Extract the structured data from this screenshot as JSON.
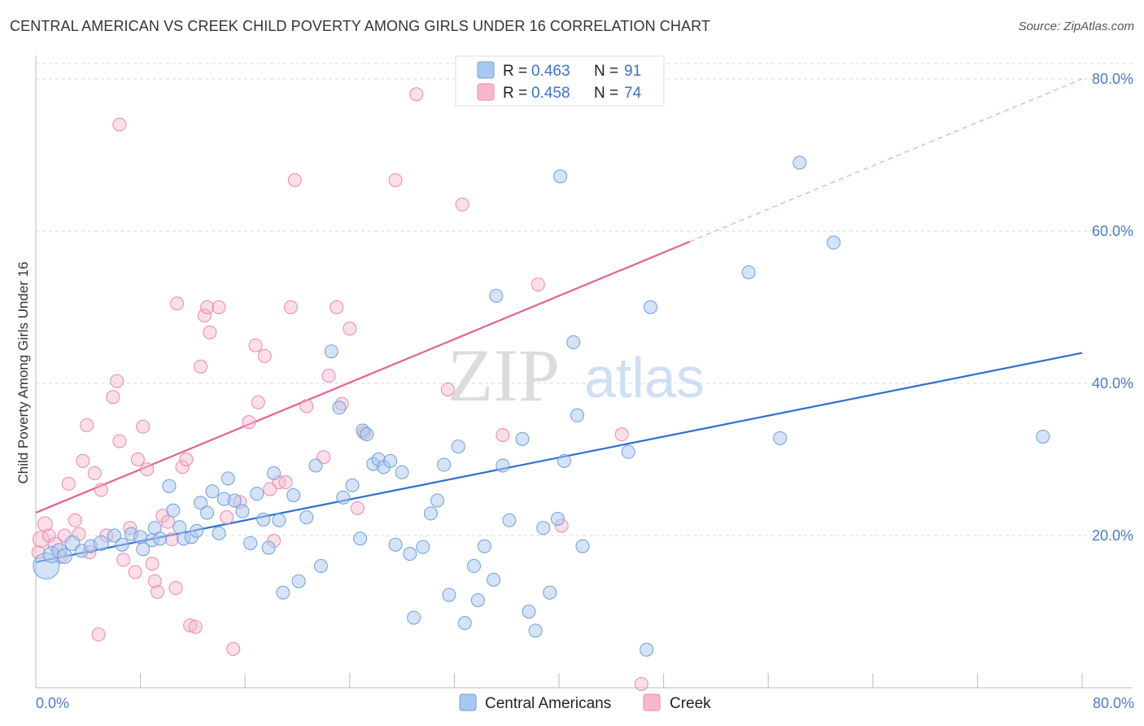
{
  "header": {
    "title": "CENTRAL AMERICAN VS CREEK CHILD POVERTY AMONG GIRLS UNDER 16 CORRELATION CHART",
    "source": "Source: ZipAtlas.com"
  },
  "watermark": {
    "zip": "ZIP",
    "atlas": "atlas"
  },
  "legend": {
    "rows": [
      {
        "r_label": "R = ",
        "r_value": "0.463",
        "n_label": "N = ",
        "n_value": "91",
        "color": "#a9c8f0"
      },
      {
        "r_label": "R = ",
        "r_value": "0.458",
        "n_label": "N = ",
        "n_value": "74",
        "color": "#f7b8cb"
      }
    ]
  },
  "bottom_legend": {
    "items": [
      {
        "label": "Central Americans",
        "color": "#a9c8f0"
      },
      {
        "label": "Creek",
        "color": "#f7b8cb"
      }
    ]
  },
  "chart_data": {
    "type": "scatter",
    "title": "CENTRAL AMERICAN VS CREEK CHILD POVERTY AMONG GIRLS UNDER 16 CORRELATION CHART",
    "xlabel": "",
    "ylabel": "Child Poverty Among Girls Under 16",
    "xlim": [
      0,
      80
    ],
    "ylim": [
      0,
      80
    ],
    "x_tick_labels": [
      "0.0%",
      "80.0%"
    ],
    "y_tick_labels": [
      "20.0%",
      "40.0%",
      "60.0%",
      "80.0%"
    ],
    "y_ticks": [
      20,
      40,
      60,
      80
    ],
    "grid": "horizontal dashed",
    "legend_position": "top-center",
    "colors": {
      "blue": "#6f9fdc",
      "blue_fill": "#a9c8f0",
      "pink": "#ee87a7",
      "pink_fill": "#f7b8cb",
      "blue_line": "#2f6fd0",
      "pink_line": "#e4628e"
    },
    "series": [
      {
        "name": "Central Americans",
        "r": 0.463,
        "n": 91,
        "trend": {
          "x": [
            0,
            80
          ],
          "y": [
            16.5,
            44.0
          ],
          "dashed_from": null
        },
        "points": [
          [
            0.8,
            16.0,
            16
          ],
          [
            1.2,
            17.5,
            10
          ],
          [
            1.8,
            18.0,
            9
          ],
          [
            2.2,
            17.3,
            9
          ],
          [
            2.8,
            19.0,
            9
          ],
          [
            3.5,
            18.0,
            8
          ],
          [
            4.2,
            18.6,
            8
          ],
          [
            5.0,
            19.0,
            9
          ],
          [
            6.0,
            20.0,
            8
          ],
          [
            6.6,
            18.8,
            8
          ],
          [
            7.3,
            20.2,
            8
          ],
          [
            8.0,
            19.8,
            8
          ],
          [
            8.2,
            18.2,
            8
          ],
          [
            8.9,
            19.4,
            8
          ],
          [
            9.1,
            21.0,
            8
          ],
          [
            9.5,
            19.6,
            8
          ],
          [
            10.2,
            26.5,
            8
          ],
          [
            10.5,
            23.3,
            8
          ],
          [
            11.0,
            21.1,
            8
          ],
          [
            11.3,
            19.6,
            8
          ],
          [
            11.9,
            19.8,
            8
          ],
          [
            12.3,
            20.6,
            8
          ],
          [
            12.6,
            24.3,
            8
          ],
          [
            13.1,
            23.0,
            8
          ],
          [
            13.5,
            25.8,
            8
          ],
          [
            14.0,
            20.3,
            8
          ],
          [
            14.4,
            24.8,
            8
          ],
          [
            14.7,
            27.5,
            8
          ],
          [
            15.2,
            24.6,
            8
          ],
          [
            15.8,
            23.2,
            8
          ],
          [
            16.4,
            19.0,
            8
          ],
          [
            16.9,
            25.5,
            8
          ],
          [
            17.4,
            22.1,
            8
          ],
          [
            17.8,
            18.4,
            8
          ],
          [
            18.2,
            28.2,
            8
          ],
          [
            18.6,
            22.0,
            8
          ],
          [
            18.9,
            12.5,
            8
          ],
          [
            19.7,
            25.3,
            8
          ],
          [
            20.1,
            14.0,
            8
          ],
          [
            20.7,
            22.4,
            8
          ],
          [
            21.4,
            29.2,
            8
          ],
          [
            21.8,
            16.0,
            8
          ],
          [
            22.6,
            44.2,
            8
          ],
          [
            23.2,
            36.8,
            8
          ],
          [
            23.5,
            25.0,
            8
          ],
          [
            24.2,
            26.6,
            8
          ],
          [
            24.8,
            19.6,
            8
          ],
          [
            25.0,
            33.8,
            8
          ],
          [
            25.3,
            33.3,
            8
          ],
          [
            25.8,
            29.4,
            8
          ],
          [
            26.2,
            30.0,
            8
          ],
          [
            26.6,
            29.0,
            8
          ],
          [
            27.1,
            29.8,
            8
          ],
          [
            27.5,
            18.8,
            8
          ],
          [
            28.0,
            28.3,
            8
          ],
          [
            28.6,
            17.6,
            8
          ],
          [
            28.9,
            9.2,
            8
          ],
          [
            29.6,
            18.5,
            8
          ],
          [
            30.2,
            22.9,
            8
          ],
          [
            30.7,
            24.6,
            8
          ],
          [
            31.2,
            29.3,
            8
          ],
          [
            31.6,
            12.2,
            8
          ],
          [
            32.3,
            31.7,
            8
          ],
          [
            32.8,
            8.5,
            8
          ],
          [
            33.5,
            16.0,
            8
          ],
          [
            33.8,
            11.5,
            8
          ],
          [
            34.3,
            18.6,
            8
          ],
          [
            35.0,
            14.2,
            8
          ],
          [
            35.2,
            51.5,
            8
          ],
          [
            35.7,
            29.2,
            8
          ],
          [
            36.2,
            22.0,
            8
          ],
          [
            37.2,
            32.7,
            8
          ],
          [
            37.7,
            10.0,
            8
          ],
          [
            38.2,
            7.5,
            8
          ],
          [
            38.8,
            21.0,
            8
          ],
          [
            39.3,
            12.5,
            8
          ],
          [
            39.9,
            22.2,
            8
          ],
          [
            40.1,
            67.2,
            8
          ],
          [
            40.4,
            29.8,
            8
          ],
          [
            41.1,
            45.4,
            8
          ],
          [
            41.4,
            35.8,
            8
          ],
          [
            41.8,
            18.6,
            8
          ],
          [
            45.3,
            31.0,
            8
          ],
          [
            46.7,
            5.0,
            8
          ],
          [
            47.0,
            50.0,
            8
          ],
          [
            54.5,
            54.6,
            8
          ],
          [
            56.9,
            32.8,
            8
          ],
          [
            58.4,
            69.0,
            8
          ],
          [
            61.0,
            58.5,
            8
          ],
          [
            77.0,
            33.0,
            8
          ]
        ]
      },
      {
        "name": "Creek",
        "r": 0.458,
        "n": 74,
        "trend": {
          "x": [
            0,
            80
          ],
          "y": [
            23.0,
            80.0
          ],
          "dashed_from": 50
        },
        "points": [
          [
            0.4,
            19.5,
            10
          ],
          [
            0.7,
            21.5,
            9
          ],
          [
            1.0,
            20.0,
            8
          ],
          [
            1.5,
            18.8,
            9
          ],
          [
            1.9,
            17.2,
            8
          ],
          [
            2.2,
            20.0,
            8
          ],
          [
            2.5,
            26.8,
            8
          ],
          [
            3.0,
            22.0,
            8
          ],
          [
            3.3,
            20.2,
            8
          ],
          [
            3.6,
            29.8,
            8
          ],
          [
            3.9,
            34.5,
            8
          ],
          [
            4.1,
            17.8,
            8
          ],
          [
            4.5,
            28.2,
            8
          ],
          [
            4.8,
            7.0,
            8
          ],
          [
            5.0,
            26.0,
            8
          ],
          [
            5.4,
            20.0,
            8
          ],
          [
            5.9,
            38.2,
            8
          ],
          [
            6.2,
            40.3,
            8
          ],
          [
            6.4,
            32.4,
            8
          ],
          [
            6.7,
            16.8,
            8
          ],
          [
            7.2,
            21.0,
            8
          ],
          [
            7.6,
            15.2,
            8
          ],
          [
            7.8,
            30.0,
            8
          ],
          [
            8.2,
            34.3,
            8
          ],
          [
            8.5,
            28.7,
            8
          ],
          [
            8.9,
            16.3,
            8
          ],
          [
            9.1,
            14.0,
            8
          ],
          [
            9.3,
            12.6,
            8
          ],
          [
            9.7,
            22.6,
            8
          ],
          [
            10.1,
            21.8,
            8
          ],
          [
            10.4,
            19.5,
            8
          ],
          [
            10.7,
            13.1,
            8
          ],
          [
            10.8,
            50.5,
            8
          ],
          [
            11.2,
            29.0,
            8
          ],
          [
            11.5,
            30.0,
            8
          ],
          [
            11.8,
            8.2,
            8
          ],
          [
            12.2,
            8.0,
            8
          ],
          [
            12.6,
            42.2,
            8
          ],
          [
            12.9,
            48.9,
            8
          ],
          [
            13.1,
            50.0,
            8
          ],
          [
            13.3,
            46.7,
            8
          ],
          [
            14.0,
            50.0,
            8
          ],
          [
            14.6,
            22.4,
            8
          ],
          [
            15.1,
            5.1,
            8
          ],
          [
            15.6,
            24.4,
            8
          ],
          [
            16.3,
            34.9,
            8
          ],
          [
            16.8,
            45.0,
            8
          ],
          [
            17.0,
            37.5,
            8
          ],
          [
            17.5,
            43.6,
            8
          ],
          [
            17.9,
            26.1,
            8
          ],
          [
            18.2,
            19.3,
            8
          ],
          [
            18.6,
            27.0,
            8
          ],
          [
            19.1,
            27.0,
            8
          ],
          [
            19.5,
            50.0,
            8
          ],
          [
            19.8,
            66.7,
            8
          ],
          [
            20.7,
            37.0,
            8
          ],
          [
            22.0,
            30.3,
            8
          ],
          [
            22.4,
            41.0,
            8
          ],
          [
            23.0,
            50.0,
            8
          ],
          [
            23.4,
            37.3,
            8
          ],
          [
            24.0,
            47.2,
            8
          ],
          [
            24.6,
            23.6,
            8
          ],
          [
            25.1,
            33.5,
            8
          ],
          [
            27.5,
            66.7,
            8
          ],
          [
            29.1,
            78.0,
            8
          ],
          [
            31.5,
            39.2,
            8
          ],
          [
            32.6,
            63.5,
            8
          ],
          [
            35.7,
            33.2,
            8
          ],
          [
            38.4,
            53.0,
            8
          ],
          [
            40.2,
            21.3,
            8
          ],
          [
            44.8,
            33.3,
            8
          ],
          [
            46.3,
            0.5,
            8
          ],
          [
            6.4,
            74.0,
            8
          ],
          [
            0.2,
            17.8,
            8
          ]
        ]
      }
    ]
  }
}
